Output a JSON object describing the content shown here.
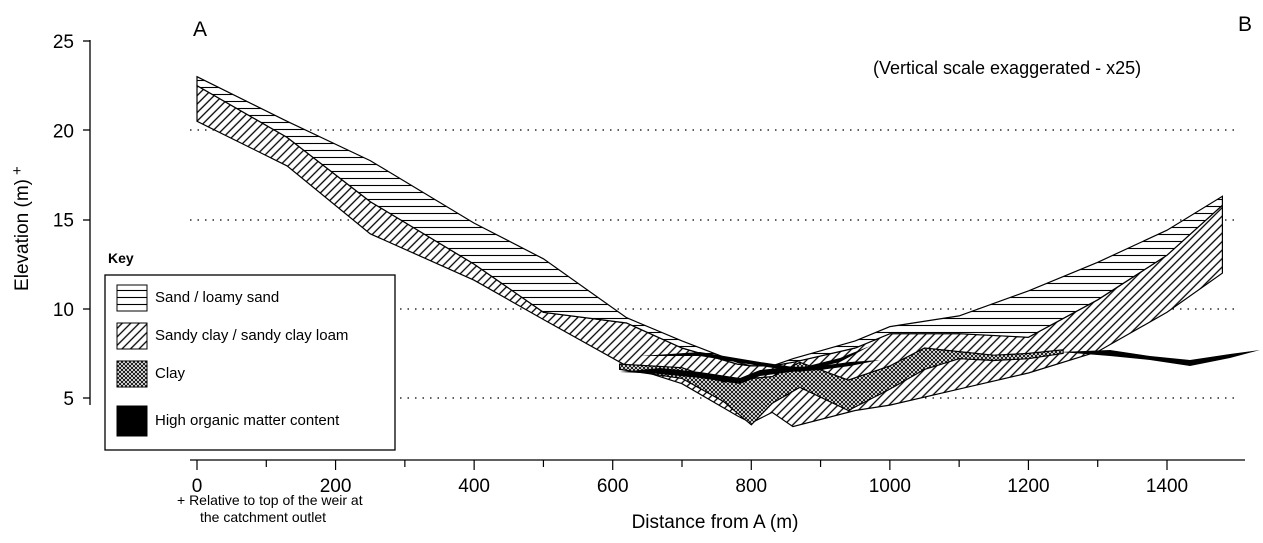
{
  "figure": {
    "point_a": "A",
    "point_b": "B",
    "scale_note": "(Vertical scale exaggerated - x25)",
    "footnote_line1": "+   Relative to top of the weir at",
    "footnote_line2": "the catchment outlet"
  },
  "key": {
    "title": "Key",
    "items": [
      {
        "label": "Sand / loamy sand",
        "pattern": "horizontal-lines"
      },
      {
        "label": "Sandy clay / sandy clay loam",
        "pattern": "diagonal-lines"
      },
      {
        "label": "Clay",
        "pattern": "crosshatch"
      },
      {
        "label": "High organic matter content",
        "pattern": "solid-black"
      }
    ]
  },
  "chart_data": {
    "type": "area",
    "xlabel": "Distance from A (m)",
    "ylabel": "Elevation (m)",
    "ylabel_mark": "+",
    "x_ticks": [
      0,
      200,
      400,
      600,
      800,
      1000,
      1200,
      1400
    ],
    "y_ticks": [
      5,
      10,
      15,
      20,
      25
    ],
    "xlim": [
      -20,
      1490
    ],
    "ylim": [
      2.5,
      25
    ],
    "grid": "dotted horizontal at 5, 10, 15, 20",
    "layers": [
      {
        "name": "Sand / loamy sand",
        "x": [
          0,
          130,
          250,
          400,
          500,
          620,
          700,
          780,
          800,
          830,
          860,
          950,
          1000,
          1100,
          1200,
          1300,
          1400,
          1480
        ],
        "top": [
          23,
          20.5,
          18.3,
          14.8,
          12.8,
          9.5,
          8.2,
          7,
          6.8,
          6.8,
          7.2,
          8.2,
          9,
          9.6,
          11,
          12.6,
          14.4,
          16.3
        ],
        "bottom": [
          22.5,
          19.6,
          16,
          12.5,
          9.8,
          9.2,
          7.8,
          6.9,
          6.8,
          6.8,
          7,
          7.8,
          8.6,
          8.6,
          8.4,
          10.5,
          13,
          15.8
        ]
      },
      {
        "name": "Sandy clay / sandy clay loam",
        "x": [
          0,
          130,
          250,
          400,
          500,
          620,
          700,
          780,
          800,
          830,
          860,
          950,
          1000,
          1100,
          1200,
          1300,
          1400,
          1480
        ],
        "top": [
          22.5,
          19.6,
          16,
          12.5,
          9.8,
          9.2,
          7.8,
          6.9,
          6.8,
          6.8,
          7,
          7.8,
          8.6,
          8.6,
          8.4,
          10.5,
          13,
          15.8
        ],
        "bottom": [
          20.5,
          18,
          14.2,
          11.6,
          9.4,
          6.8,
          5.8,
          4,
          3.6,
          4.2,
          3.4,
          4.3,
          4.6,
          5.5,
          6.4,
          7.6,
          9.8,
          12
        ]
      },
      {
        "name": "Clay",
        "x": [
          610,
          700,
          760,
          800,
          830,
          870,
          940,
          1000,
          1050,
          1100,
          1150,
          1200,
          1250
        ],
        "top": [
          6.9,
          6.7,
          5.9,
          6.1,
          6.2,
          7,
          6,
          6.8,
          7.8,
          7.6,
          7.4,
          7.5,
          7.7
        ],
        "bottom": [
          6.6,
          6.1,
          4.8,
          3.5,
          4.7,
          5.6,
          4.3,
          5.5,
          6.6,
          7.2,
          7.1,
          7.2,
          7.5
        ]
      },
      {
        "name": "High organic matter content",
        "note": "thin lenses along the valley floor around 600–870 m and 1050–1250 m"
      }
    ]
  }
}
